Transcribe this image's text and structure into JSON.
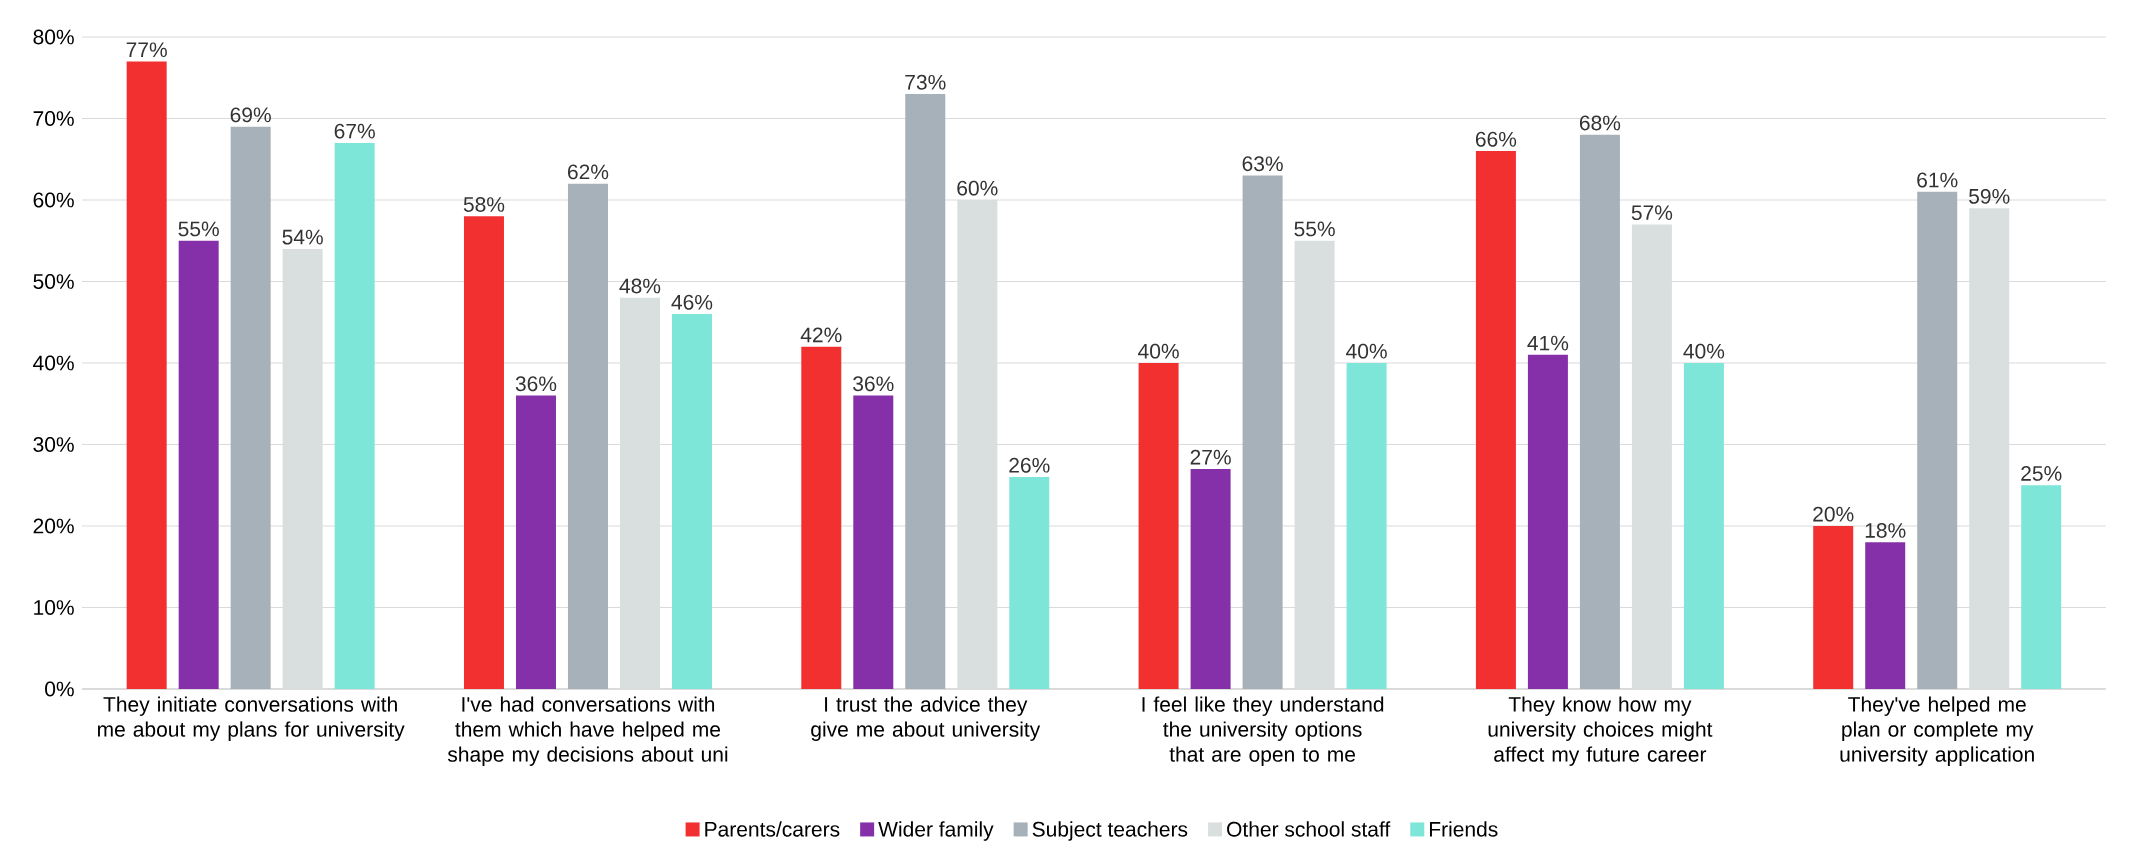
{
  "chart_data": {
    "type": "bar",
    "categories": [
      "They initiate conversations with me about my plans for university",
      "I've had conversations with them which have helped me shape my decisions about uni",
      "I trust the advice they give me about university",
      "I feel like they understand the university options that are open to me",
      "They know how my university choices might affect my future career",
      "They've helped me plan or complete my university application"
    ],
    "series": [
      {
        "name": "Parents/carers",
        "color": "#f23030",
        "values": [
          77,
          58,
          42,
          40,
          66,
          20
        ],
        "value_labels": [
          "77%",
          "58%",
          "42%",
          "40%",
          "66%",
          "20%"
        ]
      },
      {
        "name": "Wider family",
        "color": "#8530a8",
        "values": [
          55,
          36,
          36,
          27,
          41,
          18
        ],
        "value_labels": [
          "55%",
          "36%",
          "36%",
          "27%",
          "41%",
          "18%"
        ]
      },
      {
        "name": "Subject teachers",
        "color": "#a6b1b9",
        "values": [
          69,
          62,
          73,
          63,
          68,
          61
        ],
        "value_labels": [
          "69%",
          "62%",
          "73%",
          "63%",
          "68%",
          "61%"
        ]
      },
      {
        "name": "Other school staff",
        "color": "#d9dfdf",
        "values": [
          54,
          48,
          60,
          55,
          57,
          59
        ],
        "value_labels": [
          "54%",
          "48%",
          "60%",
          "55%",
          "57%",
          "59%"
        ]
      },
      {
        "name": "Friends",
        "color": "#7ee5d9",
        "values": [
          67,
          46,
          26,
          40,
          40,
          25
        ],
        "value_labels": [
          "67%",
          "46%",
          "26%",
          "40%",
          "40%",
          "25%"
        ]
      }
    ],
    "ylim": [
      0,
      80
    ],
    "yticks": [
      {
        "value": 0,
        "label": "0%"
      },
      {
        "value": 10,
        "label": "10%"
      },
      {
        "value": 20,
        "label": "20%"
      },
      {
        "value": 30,
        "label": "30%"
      },
      {
        "value": 40,
        "label": "40%"
      },
      {
        "value": 50,
        "label": "50%"
      },
      {
        "value": 60,
        "label": "60%"
      },
      {
        "value": 70,
        "label": "70%"
      },
      {
        "value": 80,
        "label": "80%"
      }
    ],
    "grid": "y",
    "legend": "bottom"
  }
}
